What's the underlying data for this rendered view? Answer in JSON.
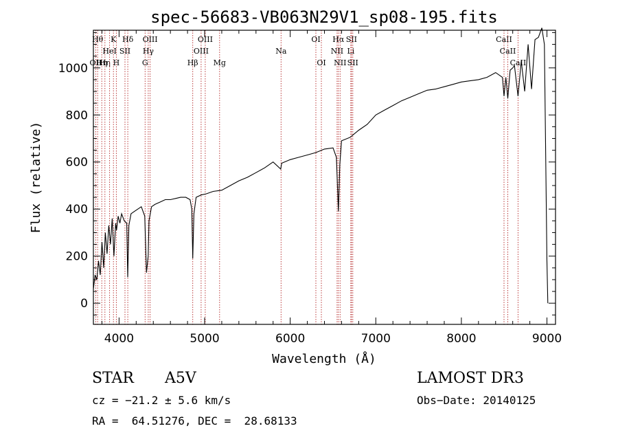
{
  "chart_data": {
    "type": "line",
    "title": "spec-56683-VB063N29V1_sp08-195.fits",
    "xlabel": "Wavelength (Å)",
    "ylabel": "Flux (relative)",
    "xlim": [
      3700,
      9100
    ],
    "ylim": [
      -90,
      1160
    ],
    "xticks": [
      4000,
      5000,
      6000,
      7000,
      8000,
      9000
    ],
    "yticks": [
      0,
      200,
      400,
      600,
      800,
      1000
    ],
    "line_color": "#000000",
    "marker_color": "#b22222",
    "spectrum": {
      "name": "flux",
      "x": [
        3700,
        3720,
        3740,
        3760,
        3780,
        3800,
        3820,
        3840,
        3860,
        3880,
        3900,
        3920,
        3940,
        3960,
        3970,
        3990,
        4010,
        4030,
        4060,
        4090,
        4101,
        4115,
        4140,
        4180,
        4220,
        4260,
        4300,
        4320,
        4340,
        4350,
        4380,
        4420,
        4480,
        4540,
        4600,
        4660,
        4720,
        4780,
        4830,
        4850,
        4861,
        4875,
        4900,
        4960,
        5020,
        5100,
        5200,
        5300,
        5400,
        5500,
        5600,
        5700,
        5800,
        5889,
        5900,
        6000,
        6100,
        6200,
        6300,
        6400,
        6500,
        6540,
        6563,
        6580,
        6600,
        6700,
        6800,
        6900,
        7000,
        7100,
        7200,
        7300,
        7400,
        7500,
        7600,
        7700,
        7800,
        7900,
        8000,
        8100,
        8200,
        8300,
        8400,
        8480,
        8498,
        8520,
        8542,
        8570,
        8600,
        8620,
        8662,
        8700,
        8740,
        8780,
        8820,
        8860,
        8900,
        8940,
        8970,
        9000,
        9010
      ],
      "y": [
        60,
        120,
        100,
        180,
        120,
        260,
        150,
        300,
        210,
        330,
        250,
        360,
        200,
        340,
        310,
        370,
        340,
        380,
        350,
        340,
        110,
        330,
        380,
        390,
        400,
        410,
        370,
        130,
        200,
        350,
        410,
        420,
        430,
        440,
        440,
        445,
        450,
        450,
        440,
        400,
        190,
        380,
        450,
        460,
        465,
        475,
        480,
        500,
        520,
        535,
        555,
        575,
        600,
        570,
        595,
        610,
        620,
        630,
        640,
        655,
        660,
        620,
        390,
        590,
        690,
        705,
        735,
        760,
        800,
        820,
        840,
        860,
        875,
        890,
        905,
        910,
        920,
        930,
        940,
        945,
        950,
        960,
        980,
        960,
        880,
        960,
        870,
        990,
        1000,
        1010,
        880,
        1030,
        900,
        1100,
        910,
        1120,
        1130,
        1170,
        1100,
        180,
        0
      ]
    },
    "line_markers": [
      {
        "wl": 3727,
        "label": "OII",
        "row": 2
      },
      {
        "wl": 3750,
        "label": "Hθ",
        "row": 0
      },
      {
        "wl": 3798,
        "label": "Hη",
        "row": 2
      },
      {
        "wl": 3835,
        "label": "Hη",
        "row": 2
      },
      {
        "wl": 3889,
        "label": "HeI",
        "row": 1
      },
      {
        "wl": 3934,
        "label": "K",
        "row": 0
      },
      {
        "wl": 3968,
        "label": "H",
        "row": 2
      },
      {
        "wl": 4069,
        "label": "SII",
        "row": 1
      },
      {
        "wl": 4102,
        "label": "Hδ",
        "row": 0
      },
      {
        "wl": 4304,
        "label": "G",
        "row": 2
      },
      {
        "wl": 4341,
        "label": "Hγ",
        "row": 1
      },
      {
        "wl": 4363,
        "label": "OIII",
        "row": 0
      },
      {
        "wl": 4861,
        "label": "Hβ",
        "row": 2
      },
      {
        "wl": 4959,
        "label": "OIII",
        "row": 1
      },
      {
        "wl": 5007,
        "label": "OIII",
        "row": 0
      },
      {
        "wl": 5175,
        "label": "Mg",
        "row": 2
      },
      {
        "wl": 5893,
        "label": "Na",
        "row": 1
      },
      {
        "wl": 6300,
        "label": "OI",
        "row": 0
      },
      {
        "wl": 6364,
        "label": "OI",
        "row": 2
      },
      {
        "wl": 6548,
        "label": "NII",
        "row": 1
      },
      {
        "wl": 6563,
        "label": "Hα",
        "row": 0
      },
      {
        "wl": 6583,
        "label": "NII",
        "row": 2
      },
      {
        "wl": 6708,
        "label": "Li",
        "row": 1
      },
      {
        "wl": 6716,
        "label": "SII",
        "row": 0
      },
      {
        "wl": 6731,
        "label": "SII",
        "row": 2
      },
      {
        "wl": 8498,
        "label": "CaII",
        "row": 0
      },
      {
        "wl": 8542,
        "label": "CaII",
        "row": 1
      },
      {
        "wl": 8662,
        "label": "CaII",
        "row": 2
      }
    ]
  },
  "info": {
    "class_label": "STAR",
    "subclass": "A5V",
    "survey": "LAMOST DR3",
    "velocity": "cz = −21.2 ± 5.6 km/s",
    "obs_date": "Obs−Date: 20140125",
    "coords": "RA =  64.51276, DEC =  28.68133"
  }
}
